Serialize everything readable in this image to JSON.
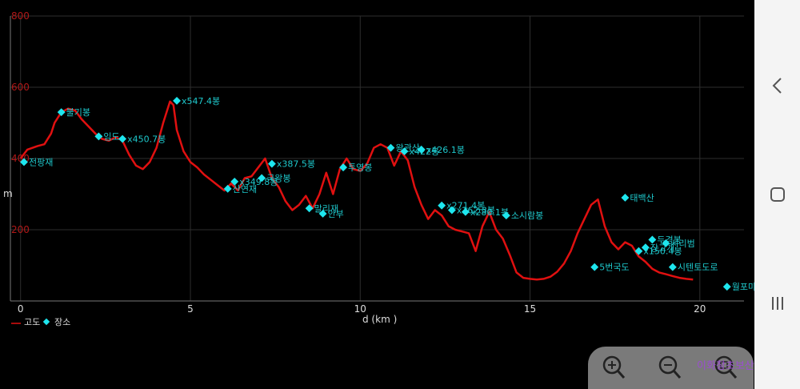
{
  "chart_data": {
    "type": "line",
    "xlabel": "d (km )",
    "ylabel": "m",
    "xlim": [
      -0.3,
      21.3
    ],
    "ylim": [
      0,
      800
    ],
    "x_ticks": [
      0,
      5,
      10,
      15,
      20
    ],
    "y_ticks": [
      200,
      400,
      600,
      800
    ],
    "grid": true,
    "legend": "bottom-left",
    "series": [
      {
        "name": "고도",
        "color": "#e01010",
        "x": [
          0,
          0.2,
          0.5,
          0.7,
          0.9,
          1.0,
          1.2,
          1.4,
          1.6,
          1.8,
          2.0,
          2.2,
          2.4,
          2.6,
          2.8,
          3.0,
          3.2,
          3.4,
          3.6,
          3.8,
          4.0,
          4.2,
          4.4,
          4.5,
          4.6,
          4.8,
          5.0,
          5.2,
          5.4,
          5.6,
          5.8,
          6.0,
          6.2,
          6.4,
          6.6,
          6.8,
          7.0,
          7.2,
          7.4,
          7.6,
          7.8,
          8.0,
          8.2,
          8.4,
          8.6,
          8.8,
          9.0,
          9.2,
          9.4,
          9.6,
          9.8,
          10.0,
          10.2,
          10.4,
          10.6,
          10.8,
          11.0,
          11.2,
          11.4,
          11.6,
          11.8,
          12.0,
          12.2,
          12.4,
          12.6,
          12.8,
          13.0,
          13.2,
          13.4,
          13.6,
          13.8,
          14.0,
          14.2,
          14.4,
          14.6,
          14.8,
          15.0,
          15.2,
          15.4,
          15.6,
          15.8,
          16.0,
          16.2,
          16.4,
          16.6,
          16.8,
          17.0,
          17.2,
          17.4,
          17.6,
          17.8,
          18.0,
          18.2,
          18.4,
          18.6,
          18.8,
          19.0,
          19.2,
          19.4,
          19.6,
          19.8
        ],
        "y": [
          400,
          425,
          435,
          440,
          470,
          500,
          530,
          540,
          535,
          510,
          490,
          470,
          455,
          450,
          460,
          450,
          410,
          380,
          370,
          390,
          430,
          500,
          560,
          550,
          480,
          420,
          390,
          375,
          355,
          340,
          325,
          310,
          330,
          310,
          345,
          350,
          375,
          400,
          345,
          320,
          280,
          255,
          270,
          295,
          260,
          300,
          360,
          300,
          370,
          400,
          370,
          365,
          385,
          430,
          440,
          430,
          380,
          420,
          395,
          320,
          270,
          230,
          255,
          240,
          210,
          200,
          195,
          190,
          140,
          210,
          250,
          200,
          175,
          130,
          80,
          65,
          62,
          60,
          62,
          68,
          82,
          105,
          140,
          190,
          230,
          270,
          285,
          210,
          165,
          145,
          165,
          155,
          125,
          110,
          90,
          80,
          75,
          70,
          65,
          62,
          60
        ]
      }
    ],
    "places": {
      "name": "장소",
      "color": "#1ee6ee",
      "points": [
        {
          "x": 0.1,
          "y": 390,
          "label": "전팡재"
        },
        {
          "x": 1.2,
          "y": 530,
          "label": "불기봉"
        },
        {
          "x": 2.3,
          "y": 462,
          "label": "임도"
        },
        {
          "x": 3.0,
          "y": 455,
          "label": "x450.7봉"
        },
        {
          "x": 4.6,
          "y": 562,
          "label": "x547.4봉"
        },
        {
          "x": 6.1,
          "y": 315,
          "label": "산연재"
        },
        {
          "x": 6.3,
          "y": 335,
          "label": "x349.8봉"
        },
        {
          "x": 7.1,
          "y": 345,
          "label": "국왕봉"
        },
        {
          "x": 7.4,
          "y": 385,
          "label": "x387.5봉"
        },
        {
          "x": 8.5,
          "y": 260,
          "label": "말리재"
        },
        {
          "x": 8.9,
          "y": 245,
          "label": "안부"
        },
        {
          "x": 9.5,
          "y": 375,
          "label": "투영봉"
        },
        {
          "x": 10.9,
          "y": 430,
          "label": "왕관산"
        },
        {
          "x": 11.3,
          "y": 420,
          "label": "x422봉"
        },
        {
          "x": 11.8,
          "y": 425,
          "label": "x426.1봉"
        },
        {
          "x": 12.4,
          "y": 268,
          "label": "x271.4봉"
        },
        {
          "x": 12.7,
          "y": 255,
          "label": "x262.3봉"
        },
        {
          "x": 13.1,
          "y": 250,
          "label": "x280.1봉"
        },
        {
          "x": 14.3,
          "y": 240,
          "label": "소시람봉"
        },
        {
          "x": 16.9,
          "y": 95,
          "label": "5번국도"
        },
        {
          "x": 17.8,
          "y": 290,
          "label": "태백산"
        },
        {
          "x": 18.2,
          "y": 140,
          "label": "x150.4봉"
        },
        {
          "x": 18.4,
          "y": 150,
          "label": "장고개"
        },
        {
          "x": 18.6,
          "y": 172,
          "label": "두경봉"
        },
        {
          "x": 19.0,
          "y": 162,
          "label": "시리범"
        },
        {
          "x": 19.2,
          "y": 95,
          "label": "시텐토도로"
        },
        {
          "x": 20.8,
          "y": 40,
          "label": "월포마을"
        }
      ]
    }
  },
  "legend": {
    "elevation_label": "고도",
    "place_label": "장소"
  },
  "watermark": "이화창초보산행이야기",
  "nav": {
    "back_icon": "back-chevron-icon",
    "home_icon": "home-icon",
    "recents_icon": "recents-icon"
  },
  "zoom": {
    "icons": [
      "zoom-in-icon",
      "zoom-out-icon",
      "zoom-reset-icon"
    ]
  }
}
